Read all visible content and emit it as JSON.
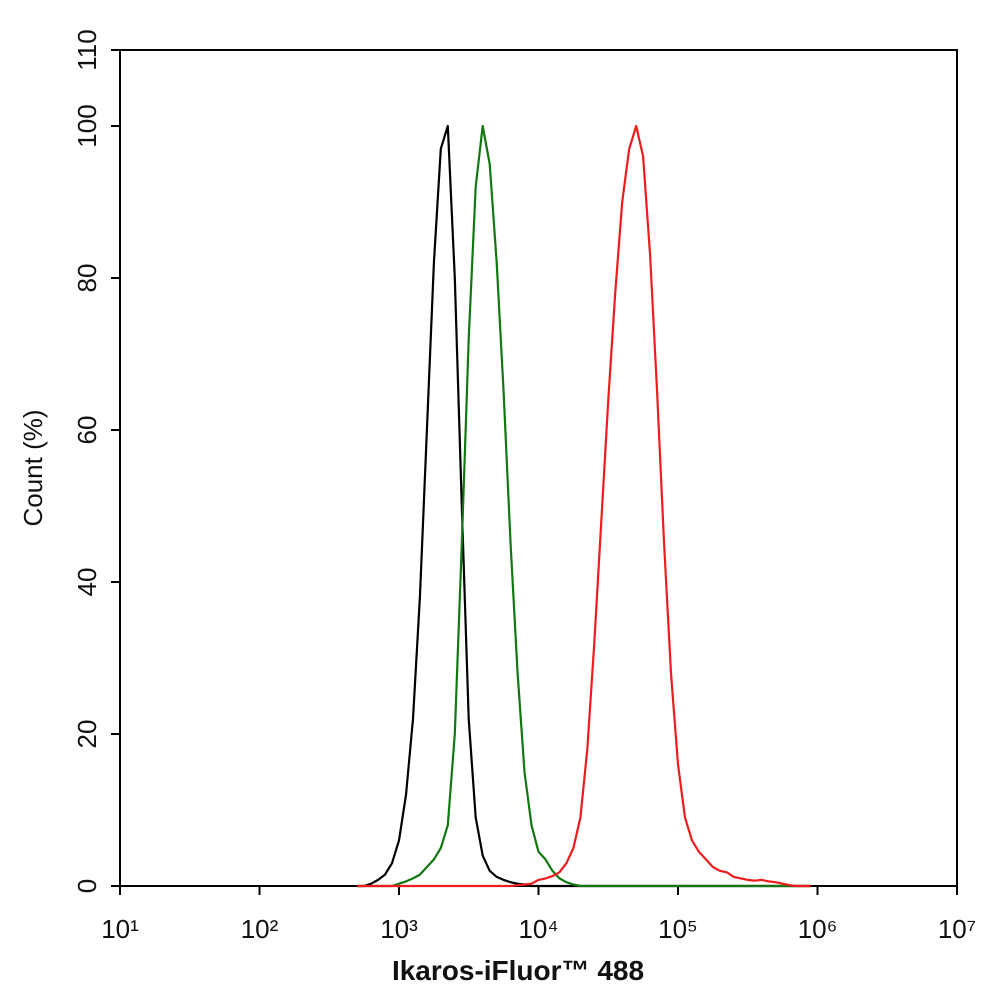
{
  "chart_data": {
    "type": "line",
    "x_label": "Ikaros-iFluor™ 488",
    "y_label": "Count  (%)",
    "xscale": "log",
    "xlim": [
      10,
      10000000
    ],
    "xticks": [
      {
        "value": 10,
        "label": "10¹"
      },
      {
        "value": 100,
        "label": "10²"
      },
      {
        "value": 1000,
        "label": "10³"
      },
      {
        "value": 10000,
        "label": "10⁴"
      },
      {
        "value": 100000,
        "label": "10⁵"
      },
      {
        "value": 1000000,
        "label": "10⁶"
      },
      {
        "value": 10000000,
        "label": "10⁷"
      }
    ],
    "ylim": [
      0,
      110
    ],
    "yticks": [
      0,
      20,
      40,
      60,
      80,
      100,
      110
    ],
    "x": [
      501,
      562,
      631,
      708,
      794,
      891,
      1000,
      1122,
      1259,
      1413,
      1585,
      1778,
      1995,
      2239,
      2512,
      2818,
      3162,
      3548,
      3981,
      4467,
      5012,
      5623,
      6310,
      7079,
      7943,
      8913,
      10000,
      11220,
      12589,
      14125,
      15849,
      17783,
      19953,
      22387,
      25119,
      28184,
      31623,
      35481,
      39811,
      44668,
      50119,
      56234,
      63096,
      70795,
      79433,
      89125,
      100000,
      112202,
      125893,
      141254,
      158489,
      177828,
      199526,
      223872,
      251189,
      281838,
      316228,
      354813,
      398107,
      446684,
      501187,
      562341,
      630957,
      707946,
      794328,
      891251
    ],
    "series": [
      {
        "color": "#000000",
        "values": [
          0,
          0,
          0.3,
          0.8,
          1.5,
          3,
          6,
          12,
          22,
          38,
          60,
          82,
          97,
          100,
          80,
          50,
          22,
          9,
          4,
          2,
          1.2,
          0.8,
          0.5,
          0.3,
          0.2,
          0,
          0,
          0,
          0,
          0,
          0,
          0,
          0,
          0,
          0,
          0,
          0,
          0,
          0,
          0,
          0,
          0,
          0,
          0,
          0,
          0,
          0,
          0,
          0,
          0,
          0,
          0,
          0,
          0,
          0,
          0,
          0,
          0,
          0,
          0,
          0,
          0,
          0,
          0,
          0,
          0
        ]
      },
      {
        "color": "#117711",
        "values": [
          0,
          0,
          0,
          0,
          0,
          0,
          0.3,
          0.6,
          1,
          1.5,
          2.5,
          3.5,
          5,
          8,
          20,
          45,
          72,
          92,
          100,
          95,
          82,
          65,
          45,
          28,
          15,
          8,
          4.5,
          3.5,
          2,
          1,
          0.5,
          0.2,
          0,
          0,
          0,
          0,
          0,
          0,
          0,
          0,
          0,
          0,
          0,
          0,
          0,
          0,
          0,
          0,
          0,
          0,
          0,
          0,
          0,
          0,
          0,
          0,
          0,
          0,
          0,
          0,
          0,
          0,
          0,
          0,
          0,
          0
        ]
      },
      {
        "color": "#ee1c1c",
        "values": [
          0,
          0,
          0,
          0,
          0,
          0,
          0,
          0,
          0,
          0,
          0,
          0,
          0,
          0,
          0,
          0,
          0,
          0,
          0,
          0,
          0,
          0,
          0,
          0.1,
          0.2,
          0.3,
          0.8,
          1,
          1.3,
          1.8,
          3,
          5,
          9,
          18,
          32,
          48,
          64,
          78,
          90,
          97,
          100,
          96,
          83,
          65,
          45,
          28,
          16,
          9,
          6,
          4.5,
          3.5,
          2.5,
          2,
          1.8,
          1.2,
          1,
          0.8,
          0.7,
          0.8,
          0.6,
          0.5,
          0.3,
          0.1,
          0,
          0,
          0
        ]
      }
    ]
  }
}
